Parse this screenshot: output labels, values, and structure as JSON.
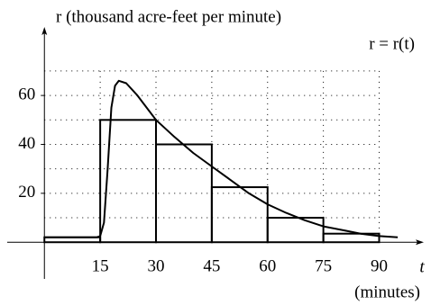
{
  "chart_data": {
    "type": "line",
    "ylabel": "r (thousand acre-feet per minute)",
    "annotation": "r = r(t)",
    "xlabel": "t",
    "xunit": "(minutes)",
    "xlim": [
      -10,
      102
    ],
    "ylim": [
      -15,
      88
    ],
    "xticks": [
      15,
      30,
      45,
      60,
      75,
      90
    ],
    "yticks": [
      20,
      40,
      60
    ],
    "ygrid": [
      10,
      20,
      30,
      40,
      50,
      60,
      70
    ],
    "grid": true,
    "steps": {
      "edges": [
        0,
        15,
        30,
        45,
        60,
        75,
        90
      ],
      "values": [
        2,
        50,
        40,
        22.5,
        10,
        3.5
      ],
      "color": "#000000"
    },
    "series": [
      {
        "color": "#000000",
        "x": [
          0,
          10,
          14,
          15,
          16,
          17,
          18,
          19,
          20,
          22,
          25,
          30,
          35,
          40,
          45,
          50,
          55,
          60,
          65,
          70,
          75,
          80,
          85,
          90,
          95
        ],
        "values": [
          2,
          2,
          2,
          2.5,
          8,
          30,
          55,
          64,
          66,
          65,
          60,
          50,
          43,
          36.5,
          31,
          25.5,
          20,
          15.5,
          12,
          9,
          6.5,
          5,
          3.5,
          2.5,
          2
        ]
      }
    ]
  }
}
